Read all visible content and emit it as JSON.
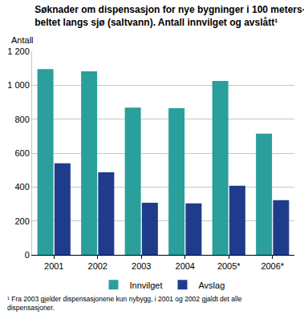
{
  "chart_data": {
    "type": "bar",
    "title": "Søknader om dispensasjon for nye bygninger i 100 meters-\nbeltet langs sjø (saltvann). Antall innvilget og avslått¹",
    "ylabel": "Antall",
    "categories": [
      "2001",
      "2002",
      "2003",
      "2004",
      "2005*",
      "2006*"
    ],
    "series": [
      {
        "name": "Innvilget",
        "color": "#2a9f9c",
        "values": [
          1095,
          1082,
          868,
          865,
          1025,
          715
        ]
      },
      {
        "name": "Avslag",
        "color": "#1f3c8c",
        "values": [
          540,
          487,
          307,
          303,
          407,
          323
        ]
      }
    ],
    "ylim": [
      0,
      1200
    ],
    "yticks": [
      0,
      200,
      400,
      600,
      800,
      {
        "value": 1000,
        "label": "1 000"
      },
      {
        "value": 1200,
        "label": "1 200"
      }
    ],
    "grid": true,
    "legend": "bottom",
    "annotations": [
      "¹ Fra 2003 gjelder dispensasjonene kun nybygg, i 2001 og 2002 gjaldt det alle\ndispensasjoner."
    ]
  }
}
